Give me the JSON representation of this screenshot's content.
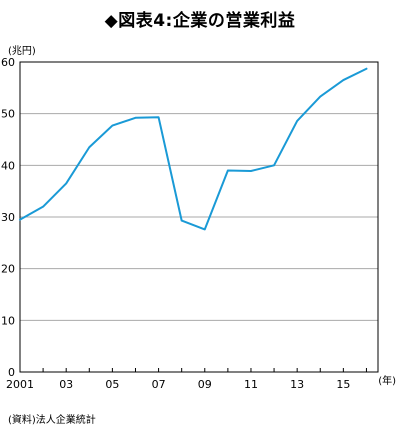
{
  "chart_data": {
    "type": "line",
    "title": "◆図表4:企業の営業利益",
    "ylabel": "(兆円)",
    "xlabel": "(年)",
    "source": "(資料)法人企業統計",
    "x": [
      2001,
      2002,
      2003,
      2004,
      2005,
      2006,
      2007,
      2008,
      2009,
      2010,
      2011,
      2012,
      2013,
      2014,
      2015,
      2016
    ],
    "x_tick_values": [
      2001,
      2003,
      2005,
      2007,
      2009,
      2011,
      2013,
      2015
    ],
    "x_tick_labels": [
      "2001",
      "03",
      "05",
      "07",
      "09",
      "11",
      "13",
      "15"
    ],
    "series": [
      {
        "values": [
          29.5,
          32.0,
          36.5,
          43.5,
          47.7,
          49.2,
          49.3,
          29.3,
          27.6,
          39.0,
          38.9,
          40.0,
          48.6,
          53.3,
          56.5,
          58.7
        ],
        "color": "#1a9ad6"
      }
    ],
    "ylim": [
      0,
      60
    ],
    "y_ticks": [
      0,
      10,
      20,
      30,
      40,
      50,
      60
    ],
    "xlim": [
      2001,
      2016.5
    ],
    "grid": true,
    "gridColor": "#aaaaaa"
  }
}
